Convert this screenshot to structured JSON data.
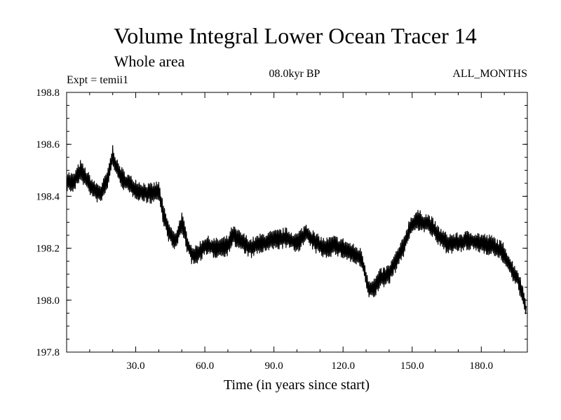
{
  "chart_data": {
    "type": "line",
    "title": "Volume Integral Lower Ocean Tracer 14",
    "subtitle": "Whole area",
    "left_label": "Expt = temii1",
    "center_label": "08.0kyr BP",
    "right_label": "ALL_MONTHS",
    "xlabel": "Time (in years since start)",
    "ylabel": "",
    "xlim": [
      0,
      200
    ],
    "ylim": [
      197.8,
      198.8
    ],
    "x_ticks": [
      30,
      60,
      90,
      120,
      150,
      180
    ],
    "x_tick_labels": [
      "30.0",
      "60.0",
      "90.0",
      "120.0",
      "150.0",
      "180.0"
    ],
    "y_ticks": [
      197.8,
      198.0,
      198.2,
      198.4,
      198.6,
      198.8
    ],
    "y_tick_labels": [
      "197.8",
      "198.0",
      "198.2",
      "198.4",
      "198.6",
      "198.8"
    ],
    "line_color": "#000000",
    "series": [
      {
        "name": "Tracer 14",
        "x": [
          0,
          3,
          6,
          9,
          12,
          15,
          18,
          20,
          22,
          25,
          28,
          32,
          36,
          40,
          42,
          44,
          47,
          50,
          52,
          54,
          56,
          60,
          65,
          70,
          72,
          75,
          80,
          85,
          90,
          95,
          100,
          104,
          108,
          112,
          116,
          120,
          124,
          128,
          131,
          133,
          136,
          140,
          143,
          146,
          149,
          152,
          155,
          158,
          161,
          165,
          170,
          175,
          180,
          185,
          190,
          193,
          196,
          198,
          199.5
        ],
        "y": [
          198.46,
          198.45,
          198.5,
          198.46,
          198.42,
          198.41,
          198.47,
          198.56,
          198.5,
          198.46,
          198.44,
          198.42,
          198.41,
          198.42,
          198.33,
          198.27,
          198.22,
          198.3,
          198.23,
          198.18,
          198.17,
          198.21,
          198.2,
          198.21,
          198.25,
          198.23,
          198.2,
          198.22,
          198.23,
          198.24,
          198.22,
          198.26,
          198.22,
          198.2,
          198.21,
          198.2,
          198.18,
          198.16,
          198.05,
          198.04,
          198.08,
          198.1,
          198.15,
          198.2,
          198.28,
          198.31,
          198.3,
          198.29,
          198.25,
          198.22,
          198.22,
          198.23,
          198.22,
          198.21,
          198.18,
          198.12,
          198.08,
          198.02,
          197.96
        ]
      }
    ]
  }
}
